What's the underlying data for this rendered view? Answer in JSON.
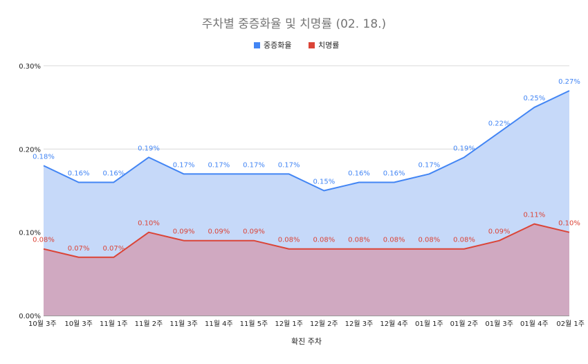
{
  "chart_data": {
    "type": "area",
    "title": "주차별 중증화율 및 치명률 (02. 18.)",
    "xlabel": "확진 주차",
    "ylabel": "",
    "ylim": [
      0,
      0.3
    ],
    "yticks": [
      "0.00%",
      "0.10%",
      "0.20%",
      "0.30%"
    ],
    "ytick_values": [
      0,
      0.1,
      0.2,
      0.3
    ],
    "legend_position": "top-center",
    "grid": true,
    "categories": [
      "10월 3주",
      "10월 3주",
      "11월 1주",
      "11월 2주",
      "11월 3주",
      "11월 4주",
      "11월 5주",
      "12월 1주",
      "12월 2주",
      "12월 3주",
      "12월 4주",
      "01월 1주",
      "01월 2주",
      "01월 3주",
      "01월 4주",
      "02월 1주"
    ],
    "series": [
      {
        "name": "중증화율",
        "color": "#4285f4",
        "fill": "#c6d9f9",
        "values": [
          0.18,
          0.16,
          0.16,
          0.19,
          0.17,
          0.17,
          0.17,
          0.17,
          0.15,
          0.16,
          0.16,
          0.17,
          0.19,
          0.22,
          0.25,
          0.27
        ],
        "labels": [
          "0.18%",
          "0.16%",
          "0.16%",
          "0.19%",
          "0.17%",
          "0.17%",
          "0.17%",
          "0.17%",
          "0.15%",
          "0.16%",
          "0.16%",
          "0.17%",
          "0.19%",
          "0.22%",
          "0.25%",
          "0.27%"
        ]
      },
      {
        "name": "치명률",
        "color": "#db4437",
        "fill": "#d0a9c1",
        "values": [
          0.08,
          0.07,
          0.07,
          0.1,
          0.09,
          0.09,
          0.09,
          0.08,
          0.08,
          0.08,
          0.08,
          0.08,
          0.08,
          0.09,
          0.11,
          0.1
        ],
        "labels": [
          "0.08%",
          "0.07%",
          "0.07%",
          "0.10%",
          "0.09%",
          "0.09%",
          "0.09%",
          "0.08%",
          "0.08%",
          "0.08%",
          "0.08%",
          "0.08%",
          "0.08%",
          "0.09%",
          "0.11%",
          "0.10%"
        ]
      }
    ]
  }
}
